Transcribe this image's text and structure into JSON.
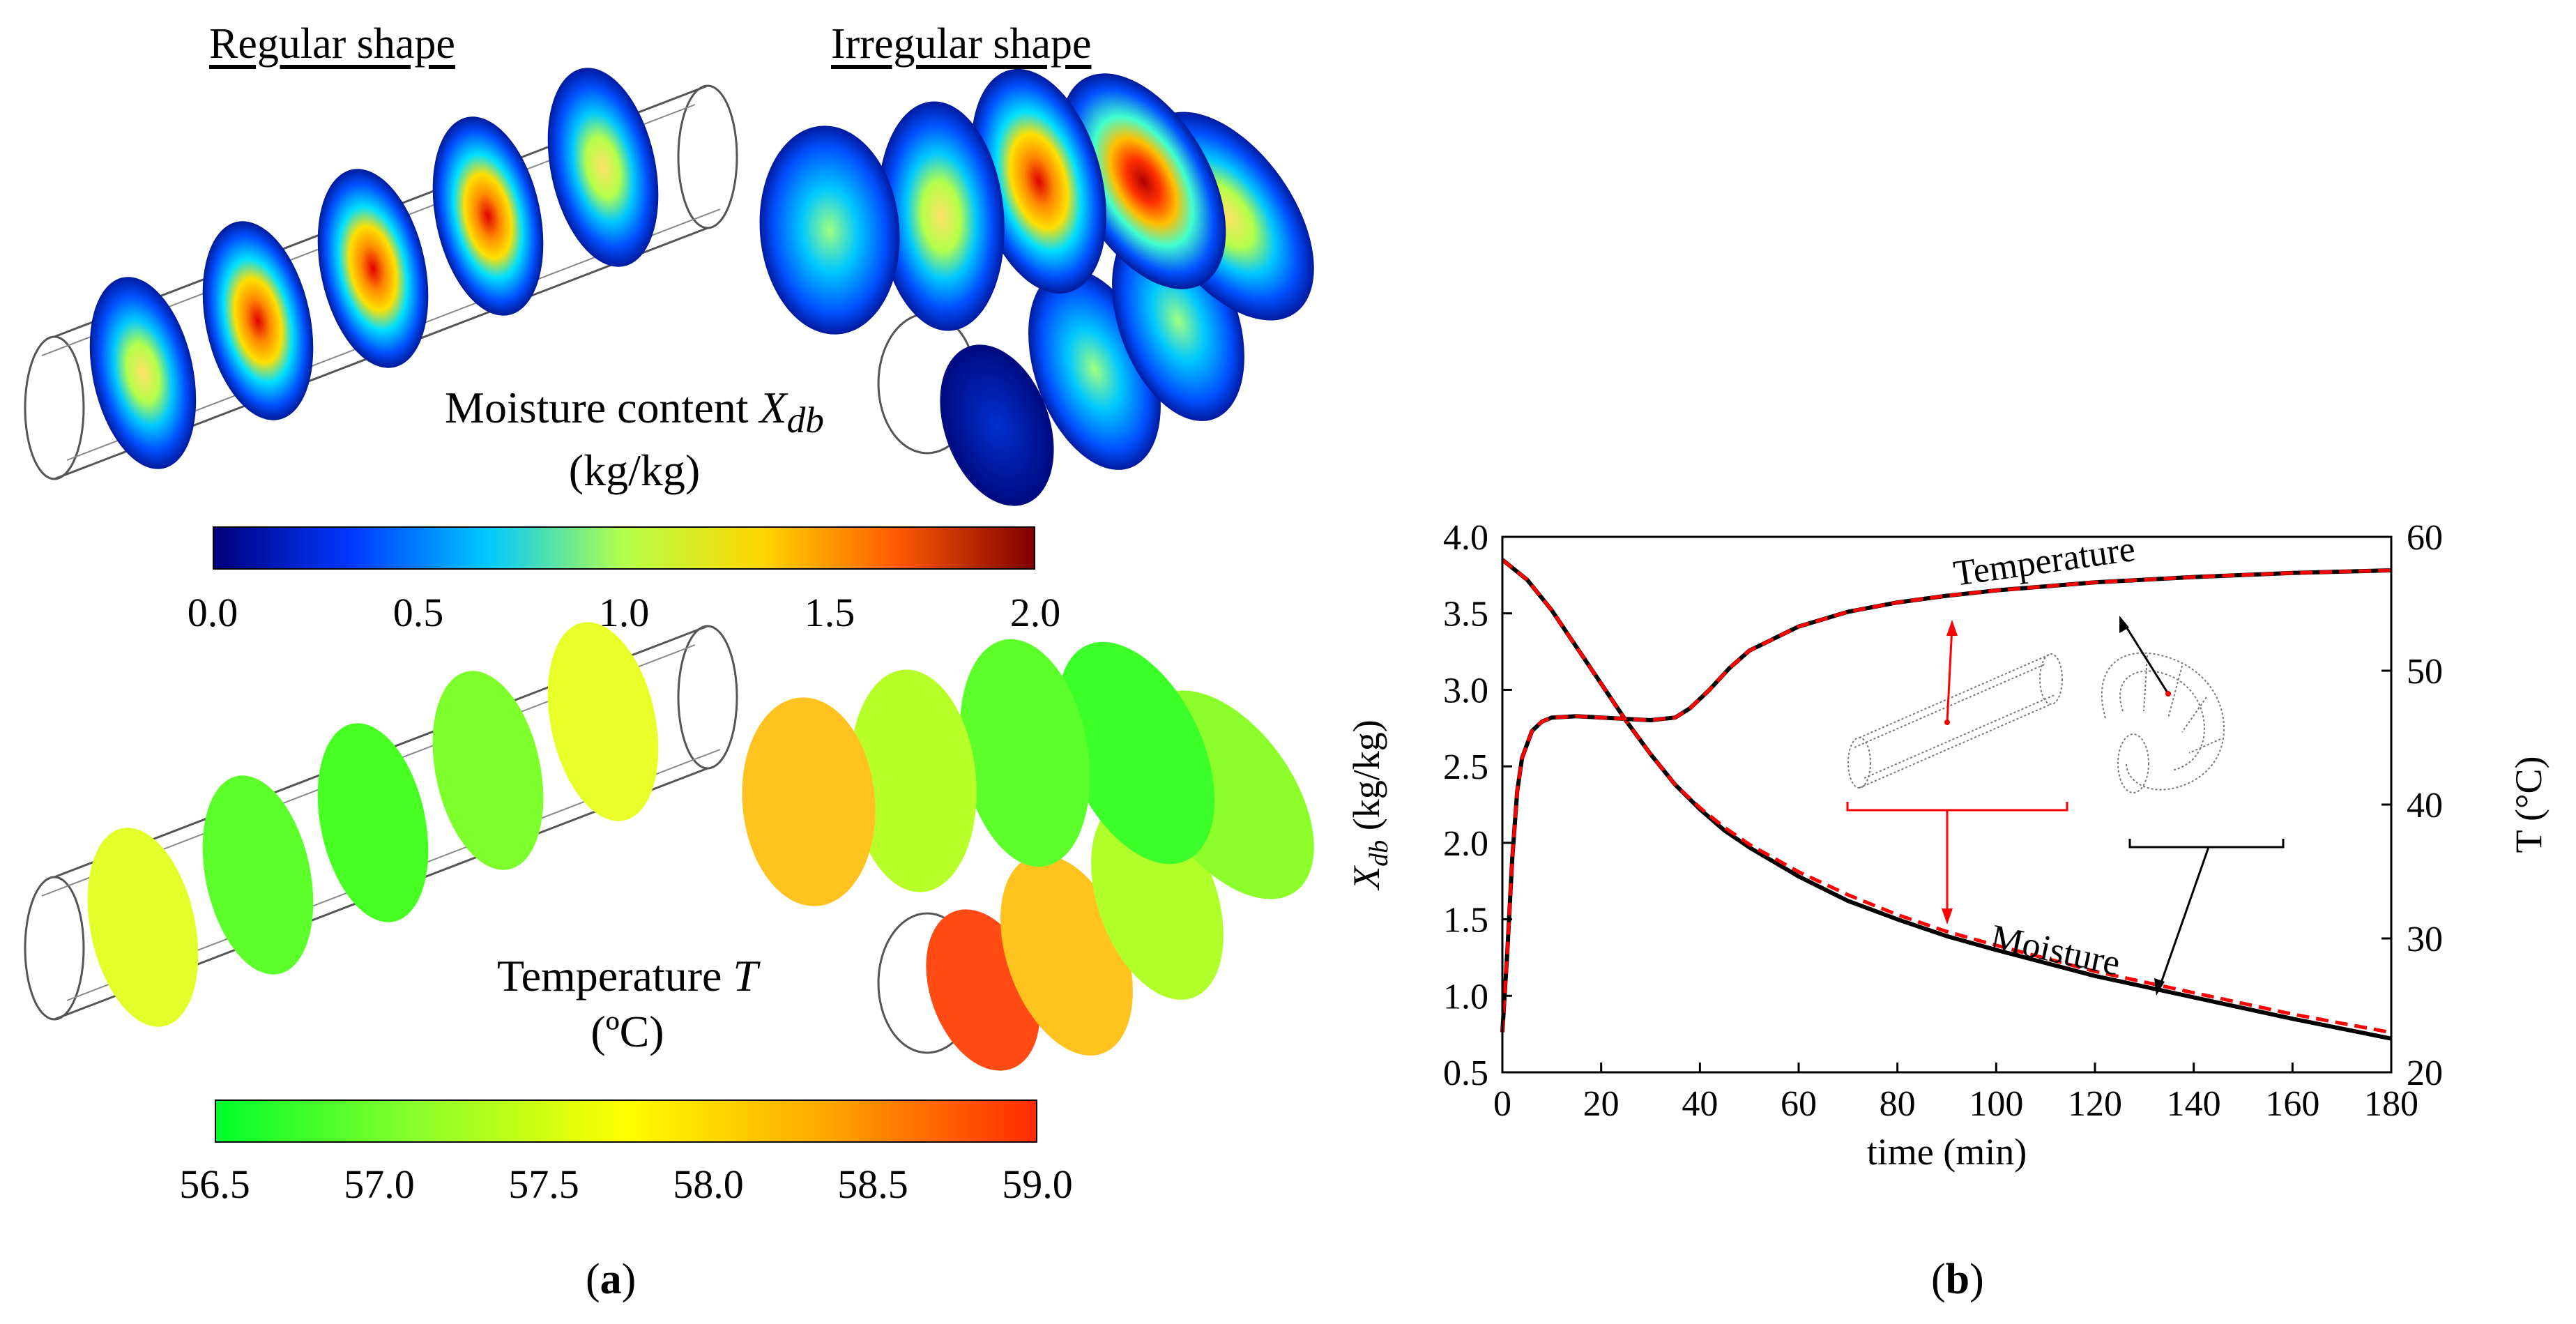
{
  "panel_a": {
    "header_regular": "Regular shape",
    "header_irregular": "Irregular shape",
    "moisture_scale": {
      "label_prefix": "Moisture content ",
      "label_var": "X",
      "label_sub": "db",
      "unit": "(kg/kg)",
      "ticks": [
        "0.0",
        "0.5",
        "1.0",
        "1.5",
        "2.0"
      ],
      "colors": [
        "#00007f",
        "#0038ff",
        "#00c8ff",
        "#b4ff4a",
        "#ffd700",
        "#ff5a00",
        "#7f0000"
      ]
    },
    "temperature_scale": {
      "label_prefix": "Temperature ",
      "label_var": "T",
      "unit": "(ºC)",
      "ticks": [
        "56.5",
        "57.0",
        "57.5",
        "58.0",
        "58.5",
        "59.0"
      ],
      "colors": [
        "#00ff2a",
        "#8cff2a",
        "#ffff00",
        "#ffa500",
        "#ff2a00"
      ]
    },
    "caption_open": "(",
    "caption_letter": "a",
    "caption_close": ")"
  },
  "panel_b": {
    "caption_open": "(",
    "caption_letter": "b",
    "caption_close": ")"
  },
  "chart_data": {
    "type": "line",
    "title": "",
    "xlabel": "time (min)",
    "ylabel_var": "X",
    "ylabel_sub": "db",
    "ylabel_unit": " (kg/kg)",
    "y2label": "T (°C)",
    "xlim": [
      0,
      180
    ],
    "ylim": [
      0.5,
      4.0
    ],
    "y2lim": [
      20,
      60
    ],
    "x_ticks": [
      0,
      20,
      40,
      60,
      80,
      100,
      120,
      140,
      160,
      180
    ],
    "y_ticks": [
      "0.5",
      "1.0",
      "1.5",
      "2.0",
      "2.5",
      "3.0",
      "3.5",
      "4.0"
    ],
    "y2_ticks": [
      20,
      30,
      40,
      50,
      60
    ],
    "annotations": {
      "temperature": "Temperature",
      "moisture": "Moisture"
    },
    "series": [
      {
        "name": "Moisture (regular shape)",
        "axis": "left",
        "color": "#000000",
        "dash": false,
        "x": [
          0,
          5,
          10,
          15,
          20,
          25,
          30,
          35,
          40,
          45,
          50,
          60,
          70,
          80,
          90,
          100,
          120,
          140,
          160,
          180
        ],
        "y": [
          3.85,
          3.72,
          3.52,
          3.28,
          3.04,
          2.8,
          2.58,
          2.38,
          2.22,
          2.08,
          1.97,
          1.78,
          1.62,
          1.5,
          1.39,
          1.3,
          1.13,
          0.99,
          0.85,
          0.72
        ]
      },
      {
        "name": "Moisture (irregular shape)",
        "axis": "left",
        "color": "#ff0000",
        "dash": true,
        "x": [
          0,
          5,
          10,
          15,
          20,
          25,
          30,
          35,
          40,
          45,
          50,
          60,
          70,
          80,
          90,
          100,
          120,
          140,
          160,
          180
        ],
        "y": [
          3.85,
          3.72,
          3.52,
          3.28,
          3.04,
          2.8,
          2.58,
          2.38,
          2.23,
          2.1,
          1.99,
          1.81,
          1.66,
          1.53,
          1.42,
          1.33,
          1.16,
          1.02,
          0.88,
          0.76
        ]
      },
      {
        "name": "Temperature (regular shape)",
        "axis": "right",
        "color": "#000000",
        "dash": false,
        "x": [
          0,
          1,
          2,
          3,
          4,
          6,
          8,
          10,
          15,
          20,
          25,
          30,
          35,
          38,
          42,
          46,
          50,
          60,
          70,
          80,
          90,
          100,
          120,
          140,
          160,
          180
        ],
        "y": [
          23,
          29,
          36,
          41,
          43.5,
          45.5,
          46.2,
          46.5,
          46.6,
          46.5,
          46.4,
          46.3,
          46.5,
          47.2,
          48.6,
          50.2,
          51.5,
          53.3,
          54.4,
          55.1,
          55.6,
          56.0,
          56.6,
          57.0,
          57.3,
          57.5
        ]
      },
      {
        "name": "Temperature (irregular shape)",
        "axis": "right",
        "color": "#ff0000",
        "dash": true,
        "x": [
          0,
          1,
          2,
          3,
          4,
          6,
          8,
          10,
          15,
          20,
          25,
          30,
          35,
          38,
          42,
          46,
          50,
          60,
          70,
          80,
          90,
          100,
          120,
          140,
          160,
          180
        ],
        "y": [
          23,
          29,
          36,
          41,
          43.5,
          45.5,
          46.2,
          46.5,
          46.6,
          46.5,
          46.4,
          46.3,
          46.5,
          47.2,
          48.6,
          50.2,
          51.5,
          53.3,
          54.4,
          55.1,
          55.6,
          56.0,
          56.6,
          57.0,
          57.3,
          57.5
        ]
      }
    ]
  }
}
